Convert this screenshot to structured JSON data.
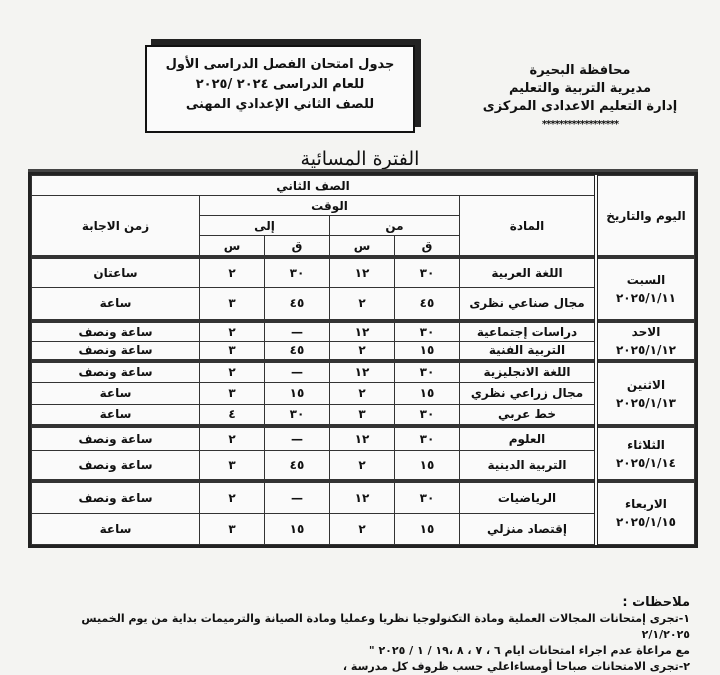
{
  "header": {
    "title_lines": [
      "جدول امتحان الفصل الدراسى الأول",
      "للعام الدراسى ٢٠٢٤ /٢٠٢٥",
      "للصف الثاني الإعدادي المهنى"
    ],
    "org_lines": [
      "محافظة البحيرة",
      "مديرية التربية والتعليم",
      "إدارة التعليم الاعدادى المركزى"
    ],
    "stars": "******************",
    "period": "الفترة المسائية"
  },
  "table": {
    "col_day": "اليوم والتاريخ",
    "col_subject": "المادة",
    "grade": "الصف الثاني",
    "time": "الوقت",
    "from": "من",
    "to": "إلى",
    "minute": "ق",
    "hour": "س",
    "col_duration": "زمن الاجابة",
    "days": [
      {
        "day": "السبت",
        "date": "٢٠٢٥/١/١١",
        "rows": [
          {
            "subject": "اللغة العربية",
            "from_m": "٣٠",
            "from_h": "١٢",
            "to_m": "٣٠",
            "to_h": "٢",
            "duration": "ساعتان",
            "h": 30
          },
          {
            "subject": "مجال صناعي نظرى",
            "from_m": "٤٥",
            "from_h": "٢",
            "to_m": "٤٥",
            "to_h": "٣",
            "duration": "ساعة",
            "h": 34
          }
        ]
      },
      {
        "day": "الاحد",
        "date": "٢٠٢٥/١/١٢",
        "rows": [
          {
            "subject": "دراسات إجتماعية",
            "from_m": "٣٠",
            "from_h": "١٢",
            "to_m": "—",
            "to_h": "٢",
            "duration": "ساعة ونصف",
            "h": 19
          },
          {
            "subject": "التربية الفنية",
            "from_m": "١٥",
            "from_h": "٢",
            "to_m": "٤٥",
            "to_h": "٣",
            "duration": "ساعة ونصف",
            "h": 19
          }
        ]
      },
      {
        "day": "الاثنين",
        "date": "٢٠٢٥/١/١٣",
        "rows": [
          {
            "subject": "اللغة الانجليزية",
            "from_m": "٣٠",
            "from_h": "١٢",
            "to_m": "—",
            "to_h": "٢",
            "duration": "ساعة ونصف",
            "h": 21
          },
          {
            "subject": "مجال زراعي نظري",
            "from_m": "١٥",
            "from_h": "٢",
            "to_m": "١٥",
            "to_h": "٣",
            "duration": "ساعة",
            "h": 22
          },
          {
            "subject": "خط عربي",
            "from_m": "٣٠",
            "from_h": "٣",
            "to_m": "٣٠",
            "to_h": "٤",
            "duration": "ساعة",
            "h": 22
          }
        ]
      },
      {
        "day": "الثلاثاء",
        "date": "٢٠٢٥/١/١٤",
        "rows": [
          {
            "subject": "العلوم",
            "from_m": "٣٠",
            "from_h": "١٢",
            "to_m": "—",
            "to_h": "٢",
            "duration": "ساعة ونصف",
            "h": 24
          },
          {
            "subject": "التربية الدينية",
            "from_m": "١٥",
            "from_h": "٢",
            "to_m": "٤٥",
            "to_h": "٣",
            "duration": "ساعة ونصف",
            "h": 31
          }
        ]
      },
      {
        "day": "الاربعاء",
        "date": "٢٠٢٥/١/١٥",
        "rows": [
          {
            "subject": "الرياضيات",
            "from_m": "٣٠",
            "from_h": "١٢",
            "to_m": "—",
            "to_h": "٢",
            "duration": "ساعة ونصف",
            "h": 32
          },
          {
            "subject": "إقتصاد منزلي",
            "from_m": "١٥",
            "from_h": "٢",
            "to_m": "١٥",
            "to_h": "٣",
            "duration": "ساعة",
            "h": 31
          }
        ]
      }
    ]
  },
  "notes": {
    "title": "ملاحظات :",
    "lines": [
      "١-تجرى إمتحانات المجالات العملية  ومادة التكنولوجيا نظريا وعمليا ومادة الصيانة والترميمات بداية   من يوم الخميس ٢/١/٢٠٢٥",
      "مع مراعاة عدم اجراء امتحانات ايام ٦ ، ٧ ، ٨ ،١٩ / ١ / ٢٠٢٥ \"",
      "٢-تجرى الامتحانات  صباحا أومساءاعلي حسب ظروف كل مدرسة  ،"
    ]
  }
}
